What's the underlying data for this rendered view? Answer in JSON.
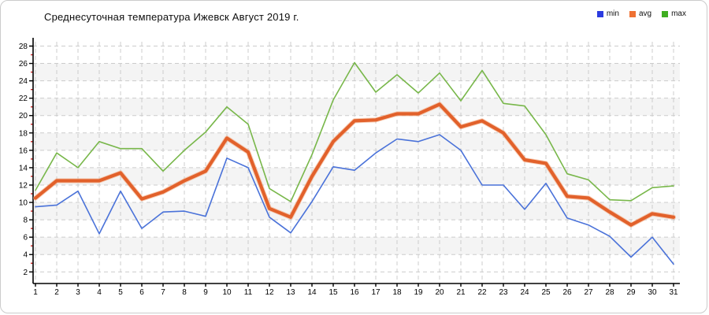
{
  "frame": {
    "background": "#ffffff",
    "border_color": "#cbcbcb"
  },
  "header": {
    "title": "Среднесуточная температура Ижевск  Август 2019 г."
  },
  "legend": {
    "items": [
      {
        "label": "min",
        "color": "#2b3be0"
      },
      {
        "label": "avg",
        "color": "#ef7133"
      },
      {
        "label": "max",
        "color": "#3fae21"
      }
    ]
  },
  "chart_data": {
    "type": "line",
    "title": "Среднесуточная температура Ижевск  Август 2019 г.",
    "xlabel": "",
    "ylabel": "",
    "x": [
      1,
      2,
      3,
      4,
      5,
      6,
      7,
      8,
      9,
      10,
      11,
      12,
      13,
      14,
      15,
      16,
      17,
      18,
      19,
      20,
      21,
      22,
      23,
      24,
      25,
      26,
      27,
      28,
      29,
      30,
      31
    ],
    "ylim": [
      2,
      28
    ],
    "y_tick_step": 2,
    "y_minor_tick_step": 1,
    "grid": "dashed",
    "grid_color": "#cccccc",
    "band_fill": "#f4f4f4",
    "axis_color": "#000000",
    "minor_tick_color": "#cc2222",
    "legend_position": "top-right",
    "series": [
      {
        "name": "min",
        "color": "#4a72d9",
        "width": 1.6,
        "values": [
          9.5,
          9.7,
          11.3,
          6.4,
          11.3,
          7.0,
          8.9,
          9.0,
          8.4,
          15.1,
          14.0,
          8.3,
          6.5,
          10.1,
          14.1,
          13.7,
          15.7,
          17.3,
          17.0,
          17.8,
          16.0,
          12.0,
          12.0,
          9.2,
          12.2,
          8.2,
          7.4,
          6.1,
          3.7,
          6.0,
          2.9
        ]
      },
      {
        "name": "avg",
        "color": "#e2612b",
        "width": 4.2,
        "values": [
          10.5,
          12.5,
          12.5,
          12.5,
          13.4,
          10.4,
          11.2,
          12.5,
          13.6,
          17.4,
          15.8,
          9.3,
          8.3,
          13.0,
          17.0,
          19.4,
          19.5,
          20.2,
          20.2,
          21.3,
          18.7,
          19.4,
          18.0,
          14.9,
          14.5,
          10.7,
          10.5,
          8.9,
          7.4,
          8.7,
          8.3
        ]
      },
      {
        "name": "max",
        "color": "#78b74a",
        "width": 1.6,
        "values": [
          11.4,
          15.7,
          14.0,
          17.0,
          16.2,
          16.2,
          13.6,
          16.0,
          18.1,
          21.0,
          19.0,
          11.6,
          10.1,
          15.5,
          21.8,
          26.1,
          22.7,
          24.7,
          22.6,
          24.9,
          21.7,
          25.2,
          21.4,
          21.1,
          17.8,
          13.3,
          12.6,
          10.3,
          10.2,
          11.7,
          11.9
        ]
      }
    ]
  }
}
